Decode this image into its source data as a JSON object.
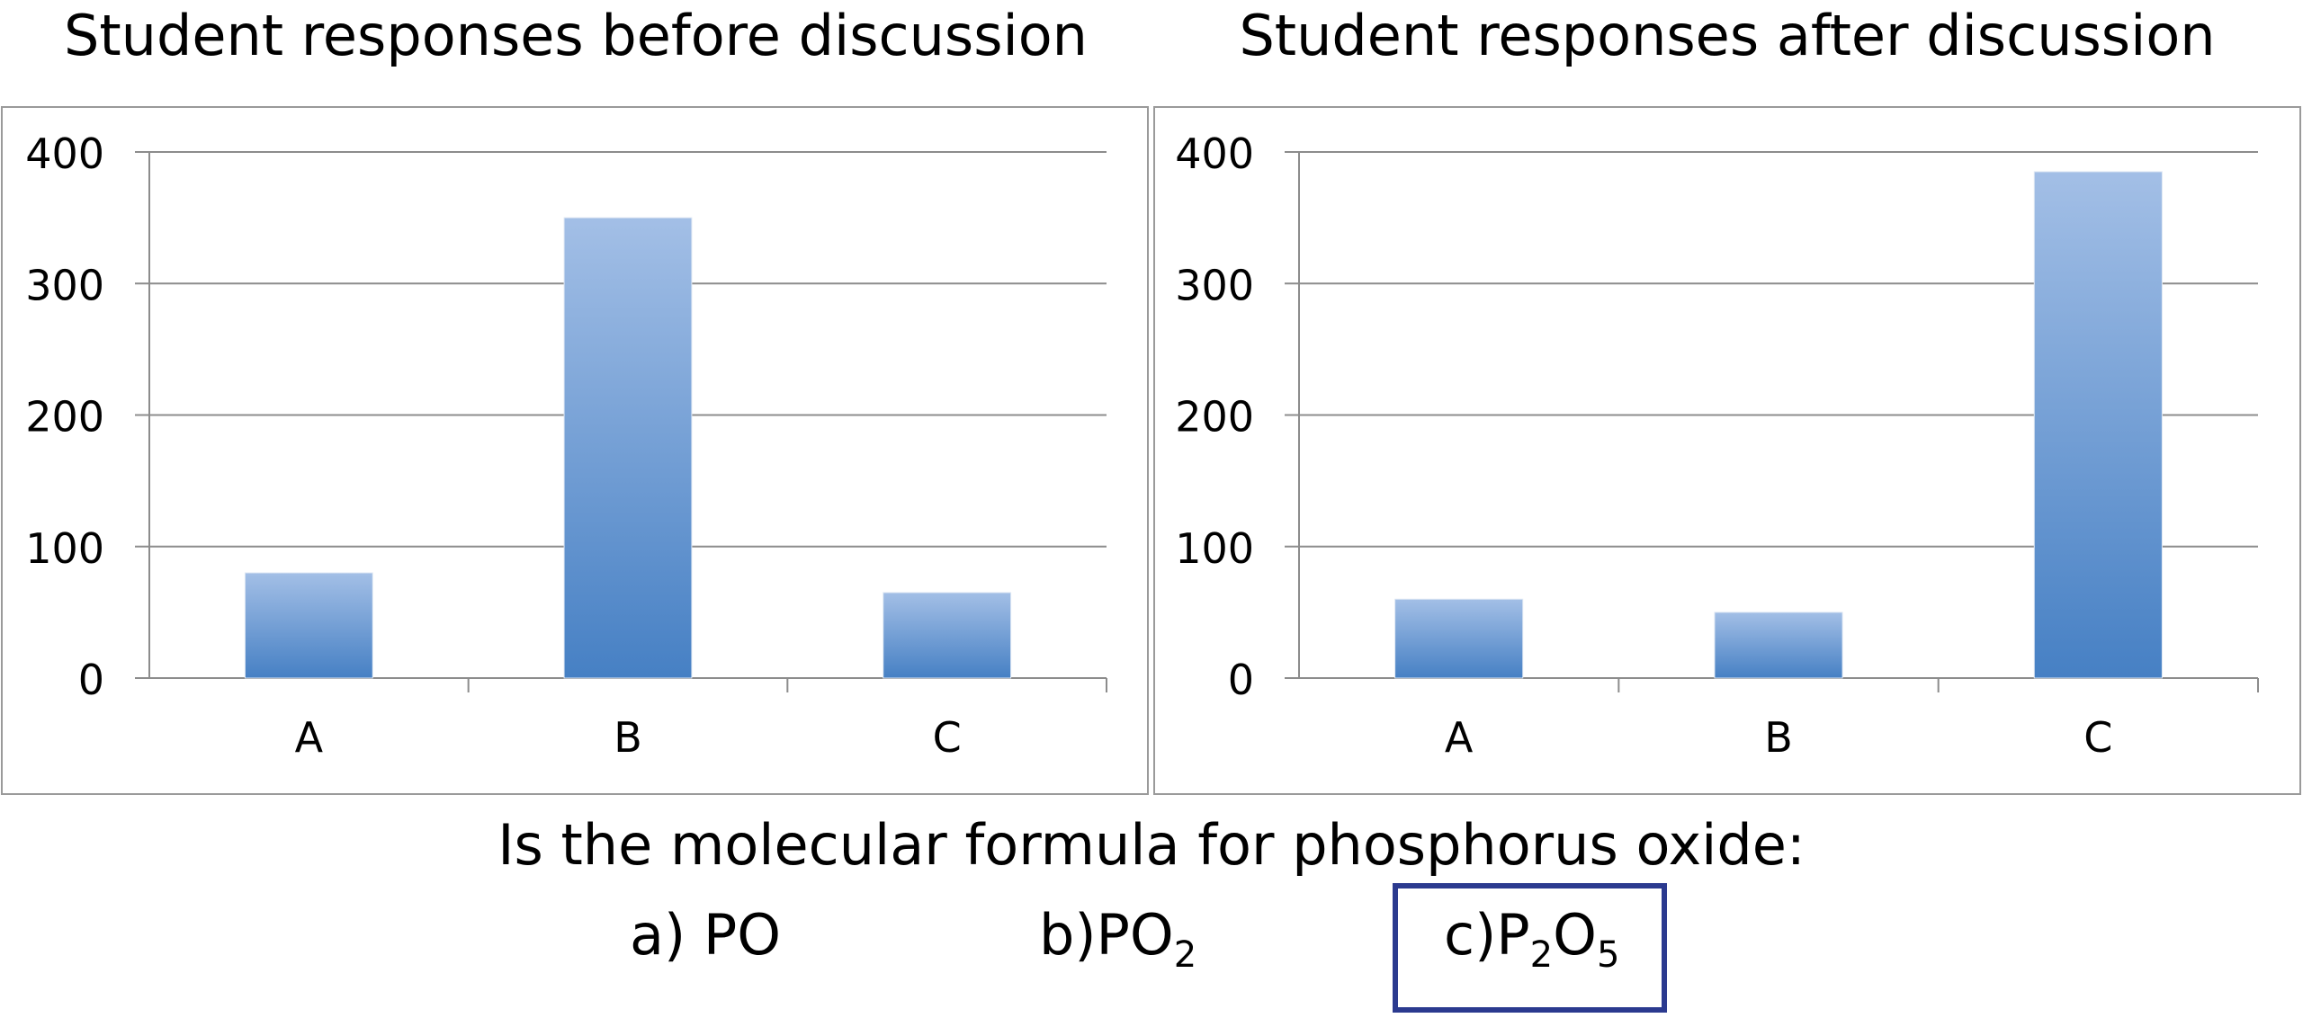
{
  "chart_data": [
    {
      "type": "bar",
      "title": "Student responses before discussion",
      "categories": [
        "A",
        "B",
        "C"
      ],
      "values": [
        80,
        350,
        65
      ],
      "yticks": [
        0,
        100,
        200,
        300,
        400
      ],
      "ylim": [
        0,
        400
      ],
      "grid": true,
      "bar_color": "#4f86c6"
    },
    {
      "type": "bar",
      "title": "Student responses after discussion",
      "categories": [
        "A",
        "B",
        "C"
      ],
      "values": [
        60,
        50,
        385
      ],
      "yticks": [
        0,
        100,
        200,
        300,
        400
      ],
      "ylim": [
        0,
        400
      ],
      "grid": true,
      "bar_color": "#4f86c6"
    }
  ],
  "question": {
    "text": "Is the molecular formula for phosphorus oxide:",
    "options": [
      {
        "prefix": "a) ",
        "formula": [
          {
            "t": "PO"
          }
        ]
      },
      {
        "prefix": "b)",
        "formula": [
          {
            "t": "PO"
          },
          {
            "sub": "2"
          }
        ]
      },
      {
        "prefix": "c)",
        "formula": [
          {
            "t": "P"
          },
          {
            "sub": "2"
          },
          {
            "t": "O"
          },
          {
            "sub": "5"
          }
        ]
      }
    ],
    "highlighted_option": "c",
    "highlight_color": "#2b3a8f"
  }
}
